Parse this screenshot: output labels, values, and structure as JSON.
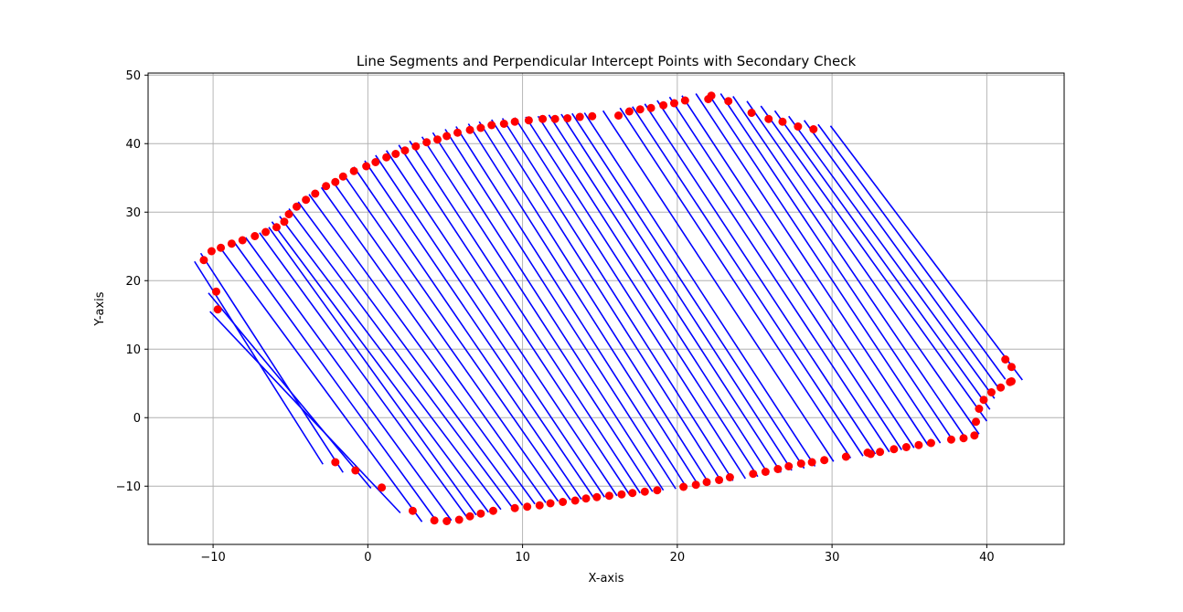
{
  "chart_data": {
    "type": "line",
    "title": "Line Segments and Perpendicular Intercept Points with Secondary Check",
    "xlabel": "X-axis",
    "ylabel": "Y-axis",
    "xlim": [
      -14.2,
      45.0
    ],
    "ylim": [
      -18.5,
      50.3
    ],
    "xticks": [
      -10,
      0,
      10,
      20,
      30,
      40
    ],
    "yticks": [
      -10,
      0,
      10,
      20,
      30,
      40,
      50
    ],
    "tick_labels": {
      "x": [
        "−10",
        "0",
        "10",
        "20",
        "30",
        "40"
      ],
      "y": [
        "−10",
        "0",
        "10",
        "20",
        "30",
        "40",
        "50"
      ]
    },
    "grid": true,
    "legend": "none",
    "colors": {
      "segments": "#0000ff",
      "points": "#ff0000",
      "grid": "#b0b0b0"
    },
    "series": [
      {
        "type": "segments",
        "segments": [
          [
            [
              -11.2,
              22.8
            ],
            [
              -2.9,
              -6.8
            ]
          ],
          [
            [
              -10.8,
              24.0
            ],
            [
              -1.6,
              -8.0
            ]
          ],
          [
            [
              -10.3,
              18.2
            ],
            [
              0.2,
              -10.3
            ]
          ],
          [
            [
              -10.2,
              15.5
            ],
            [
              2.1,
              -13.9
            ]
          ],
          [
            [
              -9.6,
              25.0
            ],
            [
              3.5,
              -15.2
            ]
          ],
          [
            [
              -8.6,
              25.5
            ],
            [
              4.5,
              -15.3
            ]
          ],
          [
            [
              -7.9,
              26.3
            ],
            [
              5.4,
              -15.0
            ]
          ],
          [
            [
              -7.0,
              27.0
            ],
            [
              6.4,
              -14.5
            ]
          ],
          [
            [
              -6.4,
              27.8
            ],
            [
              7.0,
              -14.2
            ]
          ],
          [
            [
              -6.2,
              28.6
            ],
            [
              7.8,
              -13.8
            ]
          ],
          [
            [
              -5.7,
              29.4
            ],
            [
              8.6,
              -13.4
            ]
          ],
          [
            [
              -5.1,
              30.5
            ],
            [
              9.3,
              -13.0
            ]
          ],
          [
            [
              -4.5,
              31.5
            ],
            [
              10.0,
              -12.8
            ]
          ],
          [
            [
              -3.8,
              32.6
            ],
            [
              10.8,
              -12.6
            ]
          ],
          [
            [
              -3.0,
              33.6
            ],
            [
              11.5,
              -12.4
            ]
          ],
          [
            [
              -2.3,
              34.6
            ],
            [
              12.3,
              -12.2
            ]
          ],
          [
            [
              -1.6,
              35.6
            ],
            [
              13.1,
              -12.0
            ]
          ],
          [
            [
              -0.9,
              36.6
            ],
            [
              13.8,
              -11.9
            ]
          ],
          [
            [
              -0.2,
              37.5
            ],
            [
              14.6,
              -11.7
            ]
          ],
          [
            [
              0.5,
              38.3
            ],
            [
              15.3,
              -11.6
            ]
          ],
          [
            [
              1.2,
              39.0
            ],
            [
              16.1,
              -11.4
            ]
          ],
          [
            [
              2.0,
              39.8
            ],
            [
              16.9,
              -11.2
            ]
          ],
          [
            [
              2.7,
              40.4
            ],
            [
              17.6,
              -11.0
            ]
          ],
          [
            [
              3.5,
              41.0
            ],
            [
              18.4,
              -10.8
            ]
          ],
          [
            [
              4.2,
              41.6
            ],
            [
              19.1,
              -10.6
            ]
          ],
          [
            [
              5.0,
              42.1
            ],
            [
              19.9,
              -10.4
            ]
          ],
          [
            [
              5.7,
              42.5
            ],
            [
              20.6,
              -10.2
            ]
          ],
          [
            [
              6.5,
              42.9
            ],
            [
              21.4,
              -10.0
            ]
          ],
          [
            [
              7.2,
              43.2
            ],
            [
              22.1,
              -9.8
            ]
          ],
          [
            [
              8.0,
              43.5
            ],
            [
              22.9,
              -9.5
            ]
          ],
          [
            [
              8.7,
              43.7
            ],
            [
              23.6,
              -9.2
            ]
          ],
          [
            [
              9.5,
              43.8
            ],
            [
              24.4,
              -8.9
            ]
          ],
          [
            [
              10.2,
              43.9
            ],
            [
              25.2,
              -8.6
            ]
          ],
          [
            [
              11.0,
              44.0
            ],
            [
              25.9,
              -8.3
            ]
          ],
          [
            [
              11.7,
              44.2
            ],
            [
              26.7,
              -8.0
            ]
          ],
          [
            [
              12.5,
              44.3
            ],
            [
              27.4,
              -7.7
            ]
          ],
          [
            [
              13.2,
              44.4
            ],
            [
              28.2,
              -7.4
            ]
          ],
          [
            [
              14.0,
              44.5
            ],
            [
              28.9,
              -7.1
            ]
          ],
          [
            [
              15.2,
              44.8
            ],
            [
              30.1,
              -6.4
            ]
          ],
          [
            [
              16.3,
              45.2
            ],
            [
              31.2,
              -5.9
            ]
          ],
          [
            [
              17.1,
              45.4
            ],
            [
              32.0,
              -5.6
            ]
          ],
          [
            [
              17.9,
              45.8
            ],
            [
              32.8,
              -5.3
            ]
          ],
          [
            [
              18.7,
              46.3
            ],
            [
              33.7,
              -5.0
            ]
          ],
          [
            [
              19.5,
              46.8
            ],
            [
              34.5,
              -4.7
            ]
          ],
          [
            [
              20.3,
              47.0
            ],
            [
              35.3,
              -4.4
            ]
          ],
          [
            [
              21.2,
              47.3
            ],
            [
              36.2,
              -4.0
            ]
          ],
          [
            [
              22.0,
              47.3
            ],
            [
              37.0,
              -3.7
            ]
          ],
          [
            [
              22.8,
              47.3
            ],
            [
              37.8,
              -3.3
            ]
          ],
          [
            [
              23.6,
              46.9
            ],
            [
              38.6,
              -2.9
            ]
          ],
          [
            [
              24.5,
              46.2
            ],
            [
              39.5,
              -2.4
            ]
          ],
          [
            [
              25.4,
              45.5
            ],
            [
              40.0,
              -0.5
            ]
          ],
          [
            [
              26.3,
              44.8
            ],
            [
              40.2,
              1.2
            ]
          ],
          [
            [
              27.2,
              44.0
            ],
            [
              40.5,
              2.8
            ]
          ],
          [
            [
              28.2,
              43.4
            ],
            [
              40.8,
              4.2
            ]
          ],
          [
            [
              29.1,
              42.8
            ],
            [
              41.2,
              5.6
            ]
          ],
          [
            [
              29.9,
              42.6
            ],
            [
              42.3,
              5.5
            ]
          ]
        ]
      },
      {
        "type": "scatter",
        "x": [
          -10.6,
          -9.8,
          -9.7,
          -10.1,
          -9.5,
          -8.8,
          -8.1,
          -7.3,
          -6.6,
          -5.9,
          -5.4,
          -5.1,
          -4.6,
          -4.0,
          -3.4,
          -2.7,
          -2.1,
          -1.6,
          -0.9,
          -0.1,
          0.5,
          1.2,
          1.8,
          2.4,
          3.1,
          3.8,
          4.5,
          5.1,
          5.8,
          6.6,
          7.3,
          8.0,
          8.8,
          9.5,
          10.4,
          11.3,
          12.1,
          12.9,
          13.7,
          14.5,
          16.2,
          16.9,
          17.6,
          18.3,
          19.1,
          19.8,
          20.5,
          22.0,
          22.2,
          23.3,
          24.8,
          25.9,
          26.8,
          27.8,
          28.8,
          -2.1,
          -0.8,
          0.9,
          2.9,
          4.3,
          5.1,
          5.9,
          6.6,
          7.3,
          8.1,
          9.5,
          10.3,
          11.1,
          11.8,
          12.6,
          13.4,
          14.1,
          14.8,
          15.6,
          16.4,
          17.1,
          17.9,
          18.7,
          20.4,
          21.2,
          21.9,
          22.7,
          23.4,
          24.9,
          25.7,
          26.5,
          27.2,
          28.0,
          28.7,
          29.5,
          30.9,
          32.3,
          32.5,
          33.1,
          34.0,
          34.8,
          35.6,
          36.4,
          37.7,
          38.5,
          39.2,
          39.3,
          39.5,
          39.8,
          40.3,
          40.9,
          41.2,
          41.6,
          41.6,
          41.5
        ],
        "y": [
          23.0,
          18.4,
          15.8,
          24.3,
          24.8,
          25.4,
          25.9,
          26.5,
          27.1,
          27.8,
          28.6,
          29.7,
          30.8,
          31.8,
          32.7,
          33.8,
          34.4,
          35.2,
          36.0,
          36.7,
          37.3,
          38.0,
          38.5,
          39.0,
          39.6,
          40.2,
          40.6,
          41.1,
          41.6,
          42.0,
          42.3,
          42.7,
          42.9,
          43.2,
          43.4,
          43.6,
          43.6,
          43.7,
          43.9,
          44.0,
          44.1,
          44.7,
          45.0,
          45.2,
          45.6,
          45.9,
          46.3,
          46.5,
          47.0,
          46.2,
          44.5,
          43.6,
          43.2,
          42.5,
          42.1,
          -6.5,
          -7.7,
          -10.2,
          -13.6,
          -15.0,
          -15.1,
          -14.9,
          -14.4,
          -14.0,
          -13.6,
          -13.2,
          -13.0,
          -12.8,
          -12.5,
          -12.3,
          -12.1,
          -11.8,
          -11.6,
          -11.4,
          -11.2,
          -11.0,
          -10.8,
          -10.6,
          -10.1,
          -9.8,
          -9.4,
          -9.1,
          -8.7,
          -8.2,
          -7.9,
          -7.5,
          -7.1,
          -6.7,
          -6.5,
          -6.2,
          -5.7,
          -5.1,
          -5.3,
          -5.0,
          -4.6,
          -4.3,
          -4.0,
          -3.7,
          -3.2,
          -3.0,
          -2.6,
          -0.6,
          1.3,
          2.6,
          3.7,
          4.4,
          8.5,
          7.4,
          5.3,
          5.2
        ]
      }
    ]
  }
}
